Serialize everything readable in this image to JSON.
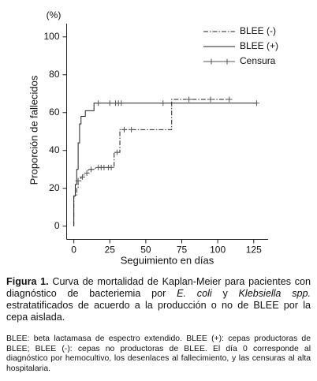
{
  "chart_data": {
    "type": "step",
    "y_unit": "(%)",
    "y_label": "Proporción de fallecidos",
    "x_label": "Seguimiento en días",
    "xlim": [
      -5,
      135
    ],
    "xticks": [
      0,
      25,
      50,
      75,
      100,
      125
    ],
    "ylim": [
      -7,
      107
    ],
    "yticks": [
      0,
      20,
      40,
      60,
      80,
      100
    ],
    "series": [
      {
        "name": "BLEE (-)",
        "style": "dashdot",
        "color": "#222",
        "x": [
          0,
          0,
          2,
          3,
          5,
          7,
          10,
          15,
          28,
          32,
          68,
          110
        ],
        "values": [
          0,
          16,
          20,
          24,
          26,
          28,
          30,
          31,
          39,
          51,
          67,
          67
        ]
      },
      {
        "name": "BLEE (+)",
        "style": "solid",
        "color": "#222",
        "x": [
          0,
          0,
          1,
          2,
          3,
          4,
          5,
          8,
          14,
          127
        ],
        "values": [
          0,
          16,
          22,
          30,
          44,
          54,
          58,
          61,
          65,
          65
        ]
      },
      {
        "name": "Censura",
        "style": "cross",
        "color": "#555",
        "x": [
          17,
          25,
          29,
          31,
          33,
          62,
          127,
          3,
          6,
          9,
          12,
          17,
          19,
          21,
          24,
          26,
          30,
          35,
          40,
          80,
          95,
          108
        ],
        "values": [
          65,
          65,
          65,
          65,
          65,
          65,
          65,
          24,
          26,
          28,
          30,
          31,
          31,
          31,
          31,
          31,
          39,
          51,
          51,
          67,
          67,
          67
        ]
      }
    ]
  },
  "caption": {
    "label": "Figura 1.",
    "parts": [
      "Curva de mortalidad de Kaplan-Meier para pacientes con diagnóstico de bacteriemia por ",
      "E. coli",
      " y ",
      "Klebsiella spp.",
      " estratatificados de acuerdo a la producción o no de BLEE por la cepa aislada."
    ]
  },
  "note": "BLEE: beta lactamasa de espectro extendido. BLEE (+): cepas productoras de BLEE; BLEE (-): cepas no productoras de BLEE. El día 0 corresponde al diagnóstico por hemocultivo, los desenlaces al fallecimiento, y las censuras al alta hospitalaria."
}
